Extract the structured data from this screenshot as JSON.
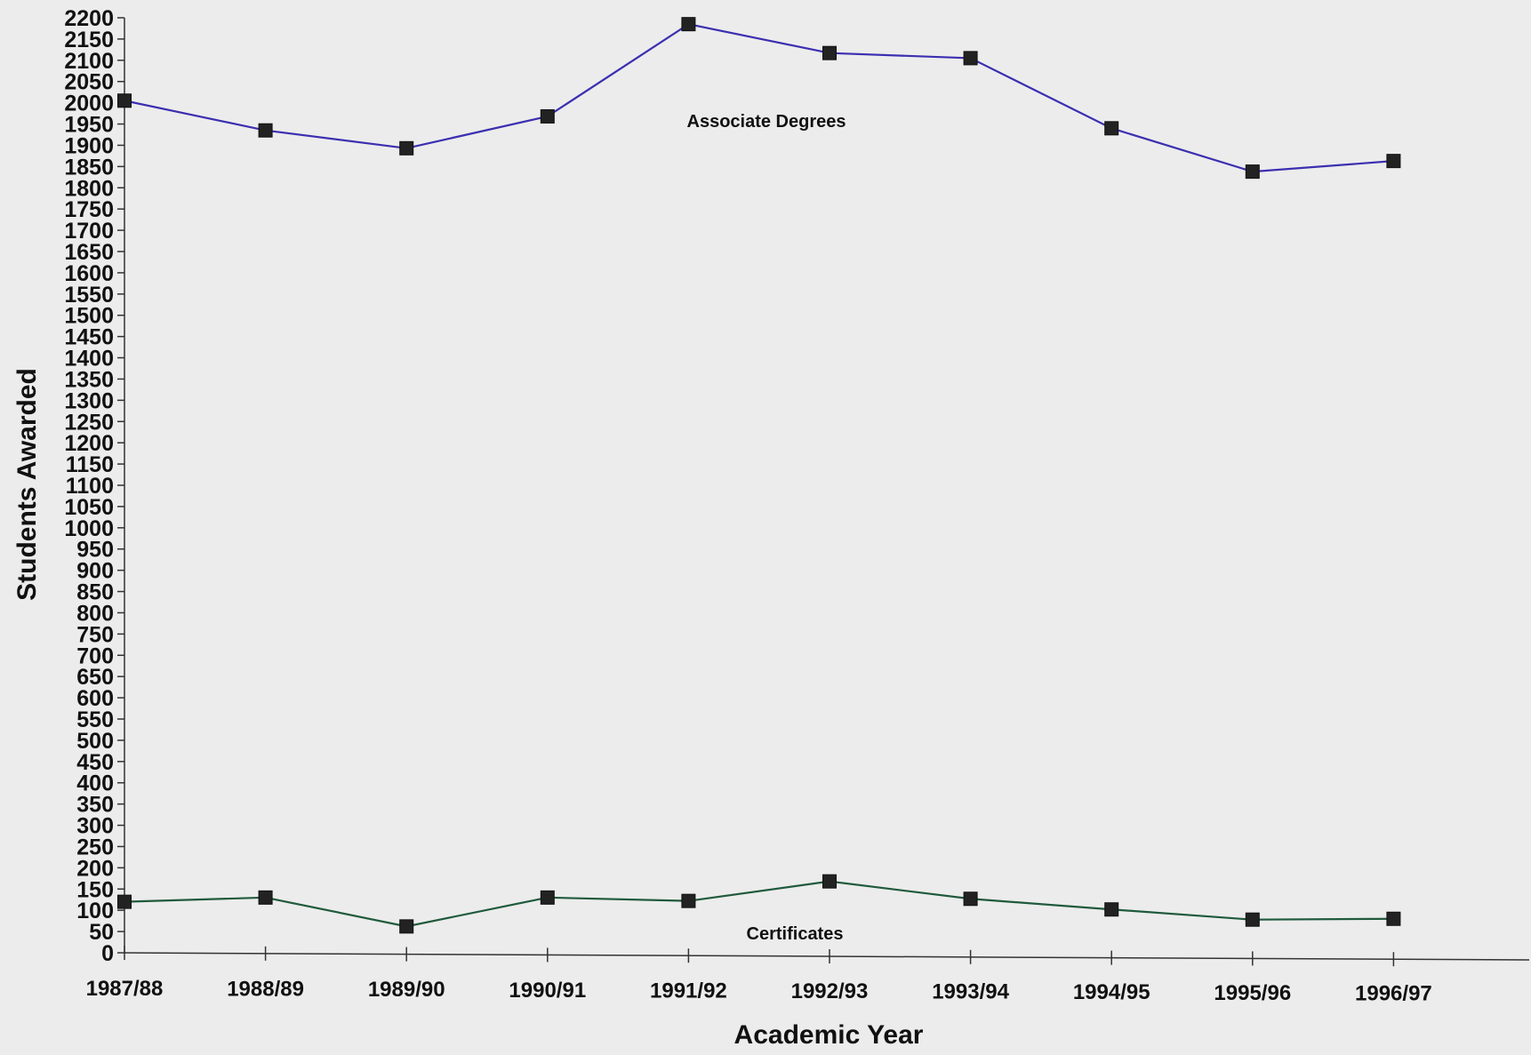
{
  "chart_data": {
    "type": "line",
    "xlabel": "Academic Year",
    "ylabel": "Students Awarded",
    "categories": [
      "1987/88",
      "1988/89",
      "1989/90",
      "1990/91",
      "1991/92",
      "1992/93",
      "1993/94",
      "1994/95",
      "1995/96",
      "1996/97"
    ],
    "ylim": [
      0,
      2200
    ],
    "y_tick_step": 50,
    "grid": false,
    "legend": "none",
    "series": [
      {
        "name": "Associate Degrees",
        "color": "#3b2fb0",
        "values": [
          2005,
          1935,
          1893,
          1968,
          2185,
          2117,
          2105,
          1940,
          1838,
          1863
        ]
      },
      {
        "name": "Certificates",
        "color": "#1f5a3c",
        "values": [
          120,
          130,
          62,
          130,
          122,
          168,
          127,
          102,
          78,
          80
        ]
      }
    ]
  }
}
